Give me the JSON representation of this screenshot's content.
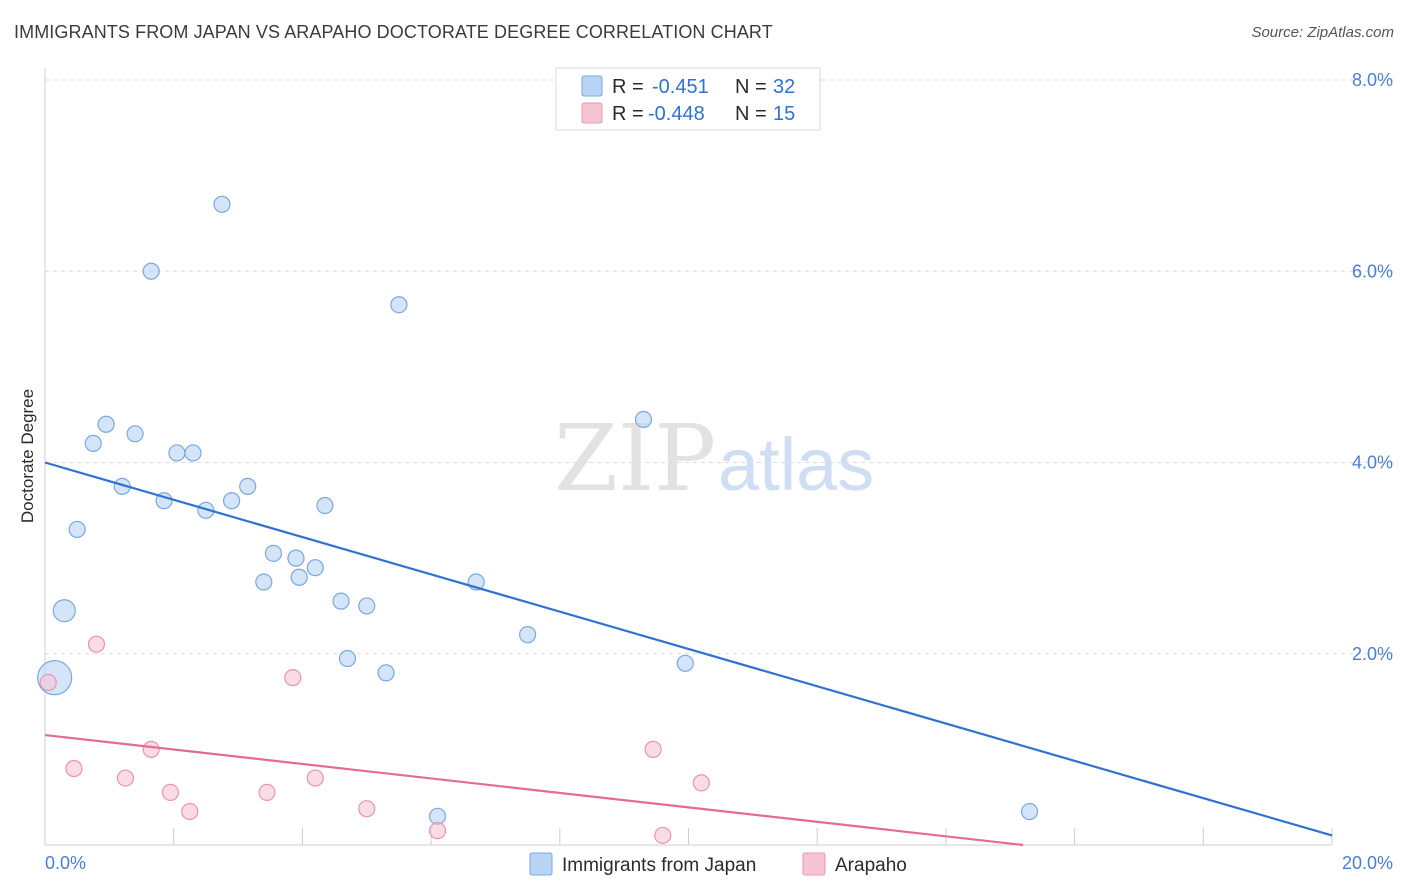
{
  "header": {
    "title": "IMMIGRANTS FROM JAPAN VS ARAPAHO DOCTORATE DEGREE CORRELATION CHART",
    "source": "Source: ZipAtlas.com"
  },
  "watermark": {
    "zip": "ZIP",
    "atlas": "atlas"
  },
  "colors": {
    "blue_fill": "#b8d3f5",
    "blue_stroke": "#7aa8e0",
    "blue_line": "#2f72d0",
    "pink_fill": "#f7c4d4",
    "pink_stroke": "#e994b0",
    "pink_line": "#e36b95",
    "axis_text": "#4a7fd4"
  },
  "legend": {
    "rows": [
      {
        "r_label": "R =",
        "r_value": "-0.451",
        "n_label": "N =",
        "n_value": "32"
      },
      {
        "r_label": "R =",
        "r_value": "-0.448",
        "n_label": "N =",
        "n_value": "15"
      }
    ]
  },
  "chart_data": {
    "type": "scatter",
    "title": "IMMIGRANTS FROM JAPAN VS ARAPAHO DOCTORATE DEGREE CORRELATION CHART",
    "ylabel": "Doctorate Degree",
    "xlabel": "",
    "xlim": [
      0,
      20
    ],
    "ylim": [
      0,
      8.0
    ],
    "x_tick_labels": [
      "0.0%",
      "20.0%"
    ],
    "y_ticks": [
      2.0,
      4.0,
      6.0,
      8.0
    ],
    "y_tick_labels": [
      "2.0%",
      "4.0%",
      "6.0%",
      "8.0%"
    ],
    "grid": true,
    "series": [
      {
        "name": "Immigrants from Japan",
        "color": "blue",
        "points": [
          {
            "x": 0.15,
            "y": 1.75,
            "size": "large"
          },
          {
            "x": 0.3,
            "y": 2.45,
            "size": "medium"
          },
          {
            "x": 0.5,
            "y": 3.3
          },
          {
            "x": 0.75,
            "y": 4.2
          },
          {
            "x": 0.95,
            "y": 4.4
          },
          {
            "x": 1.2,
            "y": 3.75
          },
          {
            "x": 1.4,
            "y": 4.3
          },
          {
            "x": 1.65,
            "y": 6.0
          },
          {
            "x": 1.85,
            "y": 3.6
          },
          {
            "x": 2.05,
            "y": 4.1
          },
          {
            "x": 2.3,
            "y": 4.1
          },
          {
            "x": 2.5,
            "y": 3.5
          },
          {
            "x": 2.75,
            "y": 6.7
          },
          {
            "x": 2.9,
            "y": 3.6
          },
          {
            "x": 3.15,
            "y": 3.75
          },
          {
            "x": 3.4,
            "y": 2.75
          },
          {
            "x": 3.55,
            "y": 3.05
          },
          {
            "x": 3.9,
            "y": 3.0
          },
          {
            "x": 3.95,
            "y": 2.8
          },
          {
            "x": 4.2,
            "y": 2.9
          },
          {
            "x": 4.35,
            "y": 3.55
          },
          {
            "x": 4.6,
            "y": 2.55
          },
          {
            "x": 4.7,
            "y": 1.95
          },
          {
            "x": 5.0,
            "y": 2.5
          },
          {
            "x": 5.3,
            "y": 1.8
          },
          {
            "x": 5.5,
            "y": 5.65
          },
          {
            "x": 6.1,
            "y": 0.3
          },
          {
            "x": 6.7,
            "y": 2.75
          },
          {
            "x": 7.5,
            "y": 2.2
          },
          {
            "x": 9.3,
            "y": 4.45
          },
          {
            "x": 9.95,
            "y": 1.9
          },
          {
            "x": 15.3,
            "y": 0.35
          }
        ],
        "trend": {
          "x1": 0,
          "y1": 4.0,
          "x2": 20,
          "y2": 0.1
        }
      },
      {
        "name": "Arapaho",
        "color": "pink",
        "points": [
          {
            "x": 0.05,
            "y": 1.7
          },
          {
            "x": 0.45,
            "y": 0.8
          },
          {
            "x": 0.8,
            "y": 2.1
          },
          {
            "x": 1.25,
            "y": 0.7
          },
          {
            "x": 1.65,
            "y": 1.0
          },
          {
            "x": 1.95,
            "y": 0.55
          },
          {
            "x": 2.25,
            "y": 0.35
          },
          {
            "x": 3.45,
            "y": 0.55
          },
          {
            "x": 3.85,
            "y": 1.75
          },
          {
            "x": 4.2,
            "y": 0.7
          },
          {
            "x": 5.0,
            "y": 0.38
          },
          {
            "x": 6.1,
            "y": 0.15
          },
          {
            "x": 9.45,
            "y": 1.0
          },
          {
            "x": 9.6,
            "y": 0.1
          },
          {
            "x": 10.2,
            "y": 0.65
          }
        ],
        "trend": {
          "x1": 0,
          "y1": 1.15,
          "x2": 15.2,
          "y2": 0.0
        }
      }
    ],
    "legend_position": "top-center"
  }
}
